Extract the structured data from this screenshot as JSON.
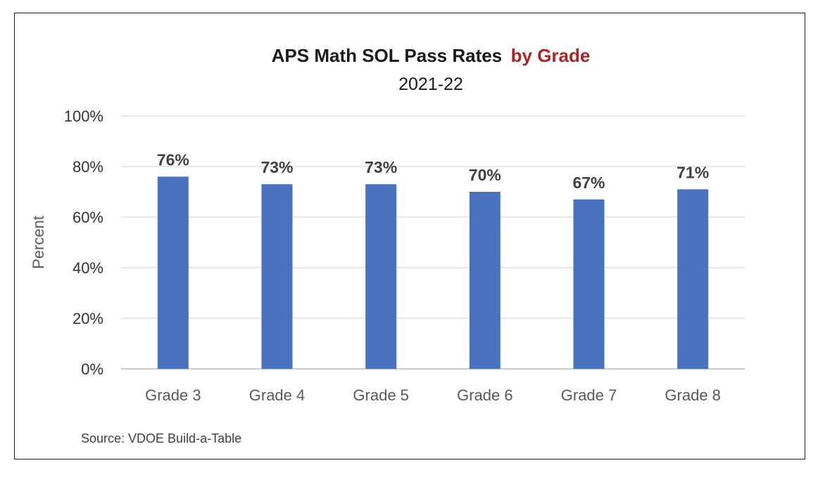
{
  "chart_data": {
    "type": "bar",
    "title": "APS Math SOL Pass Rates",
    "title_accent": "by Grade",
    "subtitle": "2021-22",
    "categories": [
      "Grade 3",
      "Grade 4",
      "Grade 5",
      "Grade 6",
      "Grade 7",
      "Grade 8"
    ],
    "values": [
      76,
      73,
      73,
      70,
      67,
      71
    ],
    "data_labels": [
      "76%",
      "73%",
      "73%",
      "70%",
      "67%",
      "71%"
    ],
    "xlabel": "",
    "ylabel": "Percent",
    "ylim": [
      0,
      100
    ],
    "yticks": [
      0,
      20,
      40,
      60,
      80,
      100
    ],
    "ytick_labels": [
      "0%",
      "20%",
      "40%",
      "60%",
      "80%",
      "100%"
    ],
    "grid": true,
    "legend": "none",
    "source": "Source: VDOE Build-a-Table",
    "colors": {
      "bar": "#4a72bf",
      "title_accent": "#b22222"
    }
  }
}
